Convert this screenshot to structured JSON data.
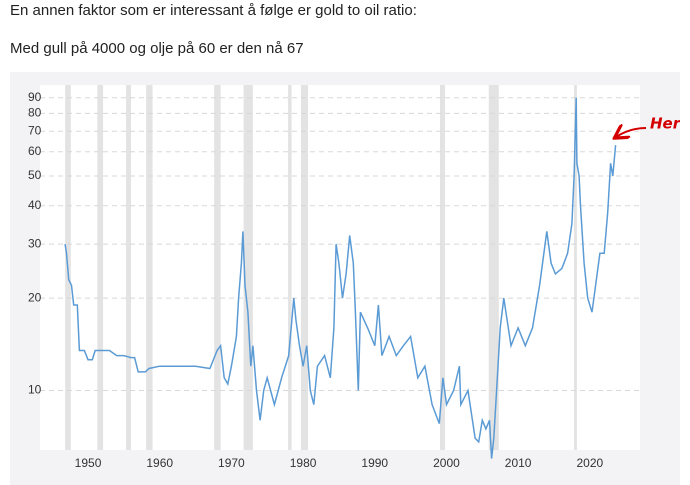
{
  "post": {
    "paragraphs": [
      "En annen faktor som er interessant å følge er gold to oil ratio:",
      "Med gull på 4000 og olje på 60 er den nå 67"
    ]
  },
  "chart_data": {
    "type": "line",
    "log_y": true,
    "grid": true,
    "annotation": "Her",
    "recession_color": "#e3e3e3",
    "xlim": [
      1943.3,
      2027
    ],
    "xticks": [
      1950,
      1960,
      1970,
      1980,
      1990,
      2000,
      2010,
      2020
    ],
    "ylim": [
      6.4,
      99
    ],
    "yticks": [
      10,
      20,
      30,
      40,
      50,
      60,
      70,
      80,
      90
    ],
    "recessions": [
      [
        1946.8,
        1947.6
      ],
      [
        1951.3,
        1952.1
      ],
      [
        1955.3,
        1956.0
      ],
      [
        1958.1,
        1959.0
      ],
      [
        1967.6,
        1968.5
      ],
      [
        1971.7,
        1973.0
      ],
      [
        1977.9,
        1978.4
      ],
      [
        1979.7,
        1980.7
      ],
      [
        1999.1,
        1999.8
      ],
      [
        2005.9,
        2007.3
      ],
      [
        2017.8,
        2018.2
      ]
    ],
    "x": [
      1946.8,
      1947,
      1947.3,
      1947.7,
      1948,
      1948.5,
      1948.8,
      1949.5,
      1950,
      1950.6,
      1951,
      1953,
      1954,
      1955,
      1956,
      1956.5,
      1957,
      1958,
      1958.5,
      1960,
      1965,
      1967,
      1968,
      1968.5,
      1969,
      1969.5,
      1970,
      1970.7,
      1971,
      1971.4,
      1971.6,
      1971.9,
      1972.3,
      1972.7,
      1973,
      1973.5,
      1974,
      1974.5,
      1975,
      1976,
      1977,
      1978,
      1978.7,
      1979,
      1979.5,
      1980,
      1980.5,
      1981,
      1981.5,
      1982,
      1983,
      1983.8,
      1984.3,
      1984.6,
      1985,
      1985.5,
      1986,
      1986.5,
      1987,
      1987.3,
      1987.7,
      1988,
      1989,
      1990,
      1990.5,
      1991,
      1992,
      1993,
      1994,
      1995,
      1996,
      1997,
      1998,
      1999,
      1999.5,
      2000,
      2001,
      2001.8,
      2002,
      2003,
      2004,
      2004.5,
      2005,
      2005.5,
      2006,
      2006.3,
      2006.6,
      2007,
      2007.5,
      2008,
      2009,
      2010,
      2011,
      2012,
      2013,
      2014,
      2014.6,
      2015.2,
      2016.1,
      2016.9,
      2017.5,
      2017.8,
      2018.1,
      2018.2,
      2018.5,
      2018.7,
      2019.2,
      2019.7,
      2020.3,
      2020.8,
      2021.4,
      2022,
      2022.5,
      2022.9,
      2023.2,
      2023.6
    ],
    "series": [
      {
        "name": "Gold to oil ratio",
        "color": "#5b9bd5",
        "values": [
          30,
          28,
          23,
          22,
          19,
          19,
          13.5,
          13.5,
          12.6,
          12.6,
          13.5,
          13.5,
          13,
          13,
          12.8,
          12.8,
          11.5,
          11.5,
          11.8,
          12,
          12,
          11.8,
          13.5,
          14,
          11,
          10.5,
          12,
          15,
          20,
          26,
          33,
          22,
          18,
          12,
          14,
          10,
          8,
          10,
          11,
          9,
          11,
          13,
          20,
          17,
          14,
          12,
          14,
          10,
          9,
          12,
          13,
          11,
          16,
          30,
          26,
          20,
          24,
          32,
          26,
          18,
          10,
          18,
          16,
          14,
          19,
          13,
          15,
          13,
          14,
          15,
          11,
          12,
          9,
          7.8,
          11,
          9,
          10,
          12,
          9,
          10,
          7,
          6.8,
          8,
          7.5,
          8,
          6,
          7,
          10,
          16,
          20,
          14,
          16,
          14,
          16,
          22,
          33,
          26,
          24,
          25,
          28,
          35,
          50,
          90,
          55,
          50,
          40,
          26,
          20,
          18,
          22,
          28,
          28,
          38,
          55,
          50,
          63
        ]
      }
    ]
  }
}
